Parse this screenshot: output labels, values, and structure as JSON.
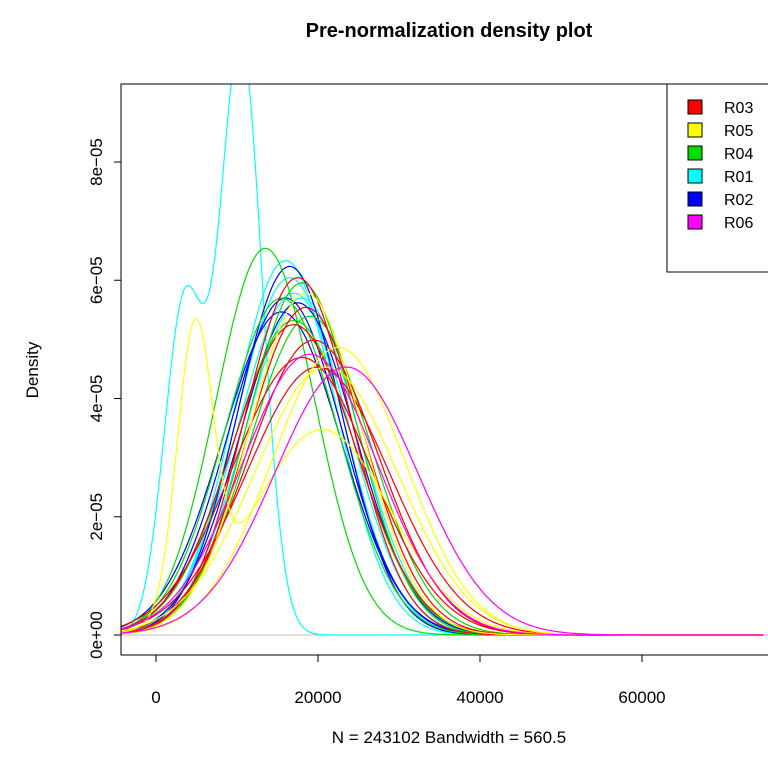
{
  "chart_data": {
    "type": "line",
    "title": "Pre-normalization density plot",
    "xlabel": "N = 243102   Bandwidth = 560.5",
    "ylabel": "Density",
    "xlim": [
      -5000,
      75000
    ],
    "ylim": [
      0,
      9e-05
    ],
    "x_ticks": [
      0,
      20000,
      40000,
      60000
    ],
    "x_tick_labels": [
      "0",
      "20000",
      "40000",
      "60000"
    ],
    "y_ticks": [
      0,
      2e-05,
      4e-05,
      6e-05,
      8e-05
    ],
    "y_tick_labels": [
      "0e+00",
      "2e−05",
      "4e−05",
      "6e−05",
      "8e−05"
    ],
    "grid": false,
    "legend_position": "top-right",
    "legend": [
      {
        "name": "R03",
        "color": "#ff0000"
      },
      {
        "name": "R05",
        "color": "#ffff00"
      },
      {
        "name": "R04",
        "color": "#00dd00"
      },
      {
        "name": "R01",
        "color": "#00ffff"
      },
      {
        "name": "R02",
        "color": "#0000ff"
      },
      {
        "name": "R06",
        "color": "#ff00ff"
      }
    ],
    "series": [
      {
        "group": "R01",
        "color": "#00ffff",
        "components": [
          {
            "mu": 3500,
            "sd": 2500,
            "w": 0.35
          },
          {
            "mu": 10500,
            "sd": 2600,
            "w": 0.65
          }
        ]
      },
      {
        "group": "R01",
        "color": "#00ffff",
        "components": [
          {
            "mu": 16000,
            "sd": 6300,
            "w": 1
          }
        ]
      },
      {
        "group": "R01",
        "color": "#00ffff",
        "components": [
          {
            "mu": 16500,
            "sd": 6600,
            "w": 1
          }
        ]
      },
      {
        "group": "R01",
        "color": "#00ffff",
        "components": [
          {
            "mu": 17000,
            "sd": 6900,
            "w": 1
          }
        ]
      },
      {
        "group": "R01",
        "color": "#00ffff",
        "components": [
          {
            "mu": 18000,
            "sd": 7000,
            "w": 1
          }
        ]
      },
      {
        "group": "R02",
        "color": "#0000ff",
        "components": [
          {
            "mu": 16500,
            "sd": 6400,
            "w": 1
          }
        ]
      },
      {
        "group": "R02",
        "color": "#0000ff",
        "components": [
          {
            "mu": 16000,
            "sd": 7000,
            "w": 1
          }
        ]
      },
      {
        "group": "R02",
        "color": "#0000ff",
        "components": [
          {
            "mu": 17500,
            "sd": 7100,
            "w": 1
          }
        ]
      },
      {
        "group": "R02",
        "color": "#0000ff",
        "components": [
          {
            "mu": 15500,
            "sd": 7300,
            "w": 1
          }
        ]
      },
      {
        "group": "R04",
        "color": "#00dd00",
        "components": [
          {
            "mu": 13500,
            "sd": 6100,
            "w": 1
          }
        ]
      },
      {
        "group": "R04",
        "color": "#00dd00",
        "components": [
          {
            "mu": 15500,
            "sd": 7000,
            "w": 1
          }
        ]
      },
      {
        "group": "R04",
        "color": "#00dd00",
        "components": [
          {
            "mu": 18000,
            "sd": 6700,
            "w": 1
          }
        ]
      },
      {
        "group": "R04",
        "color": "#00dd00",
        "components": [
          {
            "mu": 17000,
            "sd": 7500,
            "w": 1
          }
        ]
      },
      {
        "group": "R04",
        "color": "#00dd00",
        "components": [
          {
            "mu": 19000,
            "sd": 7400,
            "w": 1
          }
        ]
      },
      {
        "group": "R03",
        "color": "#ff0000",
        "components": [
          {
            "mu": 17500,
            "sd": 6600,
            "w": 1
          }
        ]
      },
      {
        "group": "R03",
        "color": "#ff0000",
        "components": [
          {
            "mu": 18500,
            "sd": 7200,
            "w": 1
          }
        ]
      },
      {
        "group": "R03",
        "color": "#ff0000",
        "components": [
          {
            "mu": 17000,
            "sd": 7600,
            "w": 1
          }
        ]
      },
      {
        "group": "R03",
        "color": "#ff0000",
        "components": [
          {
            "mu": 19500,
            "sd": 8000,
            "w": 1
          }
        ]
      },
      {
        "group": "R03",
        "color": "#ff0000",
        "components": [
          {
            "mu": 18000,
            "sd": 8500,
            "w": 1
          }
        ]
      },
      {
        "group": "R03",
        "color": "#ff0000",
        "components": [
          {
            "mu": 20000,
            "sd": 8800,
            "w": 1
          }
        ]
      },
      {
        "group": "R05",
        "color": "#ffff00",
        "components": [
          {
            "mu": 4800,
            "sd": 2200,
            "w": 0.26
          },
          {
            "mu": 20500,
            "sd": 8500,
            "w": 0.74
          }
        ]
      },
      {
        "group": "R05",
        "color": "#ffff00",
        "components": [
          {
            "mu": 18500,
            "sd": 6900,
            "w": 1
          }
        ]
      },
      {
        "group": "R05",
        "color": "#ffff00",
        "components": [
          {
            "mu": 22500,
            "sd": 8200,
            "w": 1
          }
        ]
      },
      {
        "group": "R05",
        "color": "#ffff00",
        "components": [
          {
            "mu": 21000,
            "sd": 8800,
            "w": 1
          }
        ]
      },
      {
        "group": "R06",
        "color": "#ff00ff",
        "components": [
          {
            "mu": 23500,
            "sd": 8800,
            "w": 1
          }
        ]
      },
      {
        "group": "R06",
        "color": "#ff00ff",
        "components": [
          {
            "mu": 19000,
            "sd": 8400,
            "w": 1
          }
        ]
      }
    ]
  }
}
